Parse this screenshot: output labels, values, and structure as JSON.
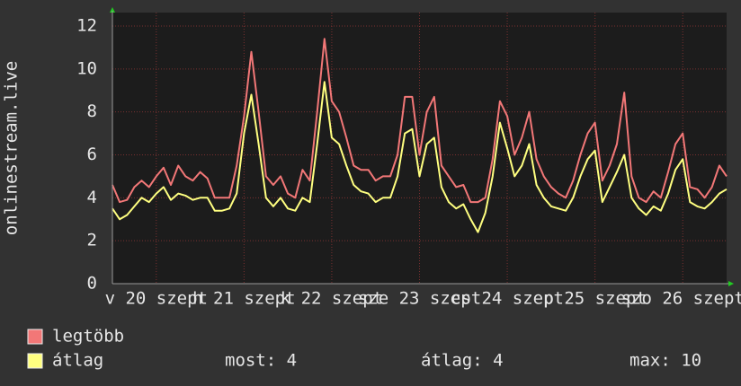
{
  "chart_data": {
    "type": "line",
    "ylabel": "onlinestream.live",
    "x": [
      0,
      2,
      4,
      6,
      8,
      10,
      12,
      14,
      16,
      18,
      20,
      22,
      24,
      26,
      28,
      30,
      32,
      34,
      36,
      38,
      40,
      42,
      44,
      46,
      48,
      50,
      52,
      54,
      56,
      58,
      60,
      62,
      64,
      66,
      68,
      70,
      72,
      74,
      76,
      78,
      80,
      82,
      84,
      86,
      88,
      90,
      92,
      94,
      96,
      98,
      100,
      102,
      104,
      106,
      108,
      110,
      112,
      114,
      116,
      118,
      120,
      122,
      124,
      126,
      128,
      130,
      132,
      134,
      136,
      138,
      140,
      142,
      144,
      146,
      148,
      150,
      152,
      154,
      156,
      158,
      160,
      162,
      164,
      166,
      168
    ],
    "series": [
      {
        "name": "legtöbb",
        "color": "#f27777",
        "values": [
          4.6,
          3.8,
          3.9,
          4.5,
          4.8,
          4.5,
          5.0,
          5.4,
          4.6,
          5.5,
          5.0,
          4.8,
          5.2,
          4.9,
          4.0,
          4.0,
          4.0,
          5.5,
          7.8,
          10.8,
          8.0,
          5.0,
          4.6,
          5.0,
          4.2,
          4.0,
          5.3,
          4.8,
          8.0,
          11.4,
          8.5,
          8.0,
          6.8,
          5.5,
          5.3,
          5.3,
          4.8,
          5.0,
          5.0,
          6.0,
          8.7,
          8.7,
          6.0,
          8.0,
          8.7,
          5.5,
          5.0,
          4.5,
          4.6,
          3.8,
          3.8,
          4.0,
          5.8,
          8.5,
          7.8,
          6.0,
          6.8,
          8.0,
          5.8,
          5.0,
          4.5,
          4.2,
          4.0,
          4.8,
          6.0,
          7.0,
          7.5,
          4.8,
          5.5,
          6.5,
          8.9,
          5.0,
          4.0,
          3.8,
          4.3,
          4.0,
          5.2,
          6.5,
          7.0,
          4.5,
          4.4,
          4.0,
          4.5,
          5.5,
          5.0
        ]
      },
      {
        "name": "átlag",
        "color": "#ffff80",
        "values": [
          3.5,
          3.0,
          3.2,
          3.6,
          4.0,
          3.8,
          4.2,
          4.5,
          3.9,
          4.2,
          4.1,
          3.9,
          4.0,
          4.0,
          3.4,
          3.4,
          3.5,
          4.2,
          7.0,
          8.8,
          6.5,
          4.0,
          3.6,
          4.0,
          3.5,
          3.4,
          4.0,
          3.8,
          6.5,
          9.4,
          6.8,
          6.5,
          5.5,
          4.6,
          4.3,
          4.2,
          3.8,
          4.0,
          4.0,
          5.0,
          7.0,
          7.2,
          5.0,
          6.5,
          6.8,
          4.5,
          3.8,
          3.5,
          3.7,
          3.0,
          2.4,
          3.3,
          5.0,
          7.5,
          6.3,
          5.0,
          5.5,
          6.5,
          4.6,
          4.0,
          3.6,
          3.5,
          3.4,
          4.0,
          5.0,
          5.8,
          6.2,
          3.8,
          4.5,
          5.2,
          6.0,
          4.0,
          3.5,
          3.2,
          3.6,
          3.4,
          4.2,
          5.3,
          5.8,
          3.8,
          3.6,
          3.5,
          3.8,
          4.2,
          4.4
        ]
      }
    ],
    "xlim": [
      0,
      168
    ],
    "xticks": [
      {
        "value": 12,
        "label": "v 20 szept"
      },
      {
        "value": 36,
        "label": "h 21 szept"
      },
      {
        "value": 60,
        "label": "k 22 szept"
      },
      {
        "value": 84,
        "label": "sze 23 szept"
      },
      {
        "value": 108,
        "label": "cs 24 szept"
      },
      {
        "value": 132,
        "label": "p 25 szept"
      },
      {
        "value": 156,
        "label": "szo 26 szept"
      }
    ],
    "ylim": [
      0,
      12
    ],
    "yticks": [
      0,
      2,
      4,
      6,
      8,
      10,
      12
    ],
    "grid": true,
    "legend": "bottom",
    "stats": [
      "most: 4",
      "átlag: 4",
      "max: 10"
    ]
  }
}
